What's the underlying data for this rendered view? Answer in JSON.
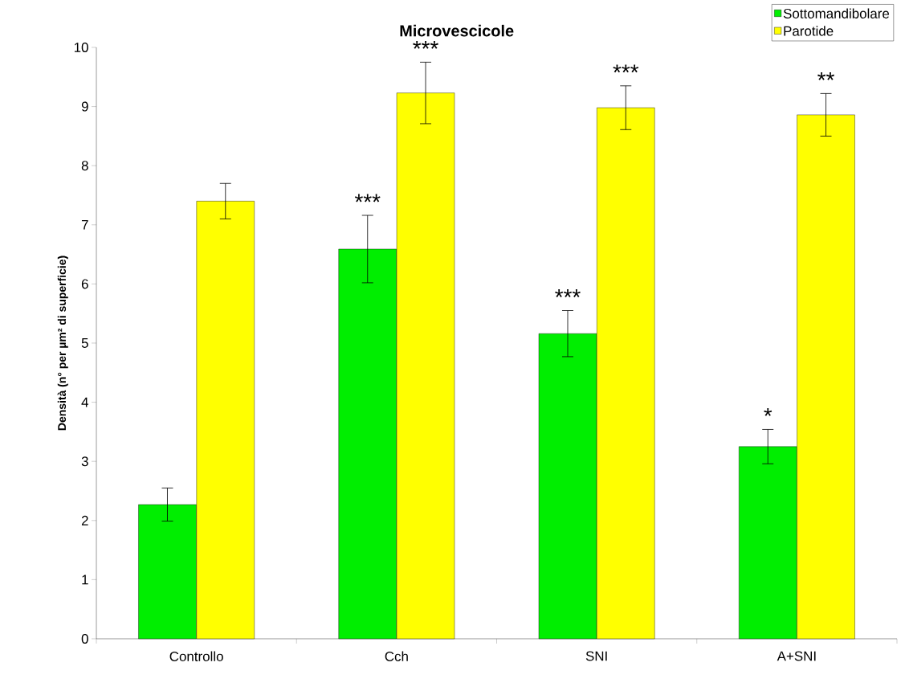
{
  "chart_data": {
    "type": "bar",
    "title": "Microvescicole",
    "ylabel": "Densità (n° per µm² di superficie)",
    "categories": [
      "Controllo",
      "Cch",
      "SNI",
      "A+SNI"
    ],
    "series": [
      {
        "name": "Sottomandibolare",
        "color": "#00ee00",
        "values": [
          2.27,
          6.59,
          5.16,
          3.25
        ],
        "errors": [
          0.28,
          0.57,
          0.39,
          0.29
        ]
      },
      {
        "name": "Parotide",
        "color": "#ffff00",
        "values": [
          7.4,
          9.23,
          8.98,
          8.86
        ],
        "errors": [
          0.3,
          0.52,
          0.37,
          0.36
        ]
      }
    ],
    "ylim": [
      0,
      10
    ],
    "yticks": [
      0,
      1,
      2,
      3,
      4,
      5,
      6,
      7,
      8,
      9,
      10
    ],
    "grid": false,
    "legend": "top right",
    "annotations": [
      {
        "text": "***",
        "x": "Cch",
        "y": 6.59
      },
      {
        "text": "***",
        "x": "Cch",
        "y": 9.23
      },
      {
        "text": "***",
        "x": "SNI",
        "y": 5.16
      },
      {
        "text": "***",
        "x": "SNI",
        "y": 8.98
      },
      {
        "text": "*",
        "x": "A+SNI",
        "y": 3.25
      },
      {
        "text": "**",
        "x": "A+SNI",
        "y": 8.86
      }
    ]
  }
}
